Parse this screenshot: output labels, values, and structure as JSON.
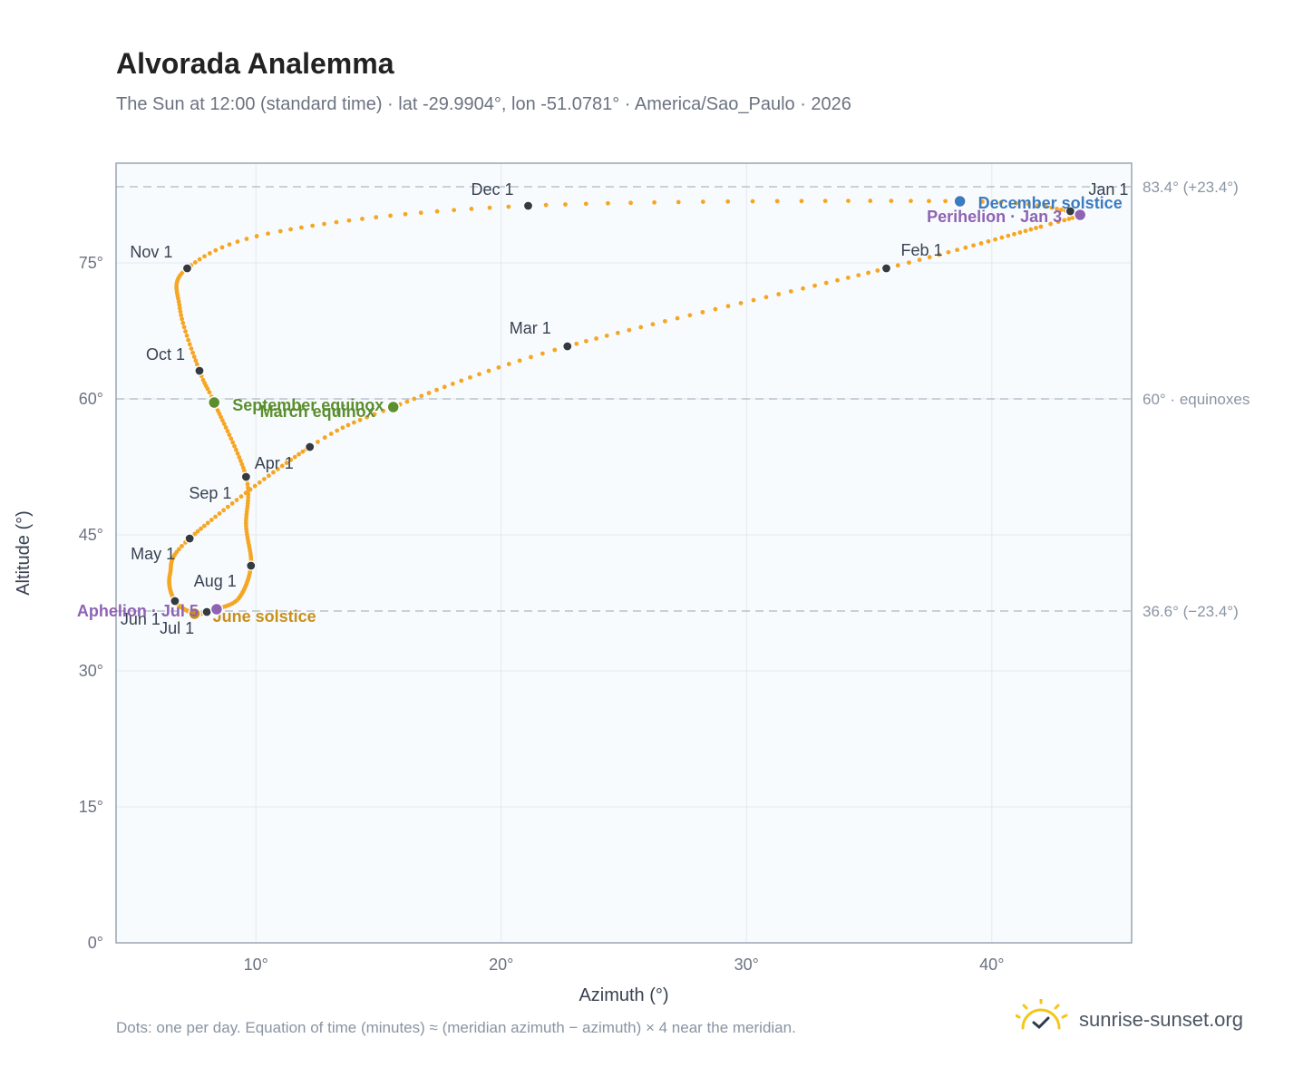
{
  "title": "Alvorada Analemma",
  "subtitle": "The Sun at 12:00 (standard time) · lat -29.9904°, lon -51.0781° · America/Sao_Paulo · 2026",
  "footnote": "Dots: one per day. Equation of time (minutes) ≈ (meridian azimuth − azimuth) × 4 near the meridian.",
  "brand": {
    "name": "sunrise-sunset.org",
    "icon": "sun-logo-icon"
  },
  "colors": {
    "path": "#f5a623",
    "month": "#343a40",
    "equinox": "#5b8f2e",
    "december": "#3b7bbf",
    "june": "#c8901a",
    "apsis": "#8e63b3",
    "refline": "#b8c2cc",
    "plotbg": "#f8fbfe",
    "frame": "#9aa5b1"
  },
  "chart_data": {
    "type": "scatter",
    "xlabel": "Azimuth (°)",
    "ylabel": "Altitude (°)",
    "xlim": [
      4.3,
      45.7
    ],
    "ylim": [
      0,
      86
    ],
    "x_ticks": [
      10,
      20,
      30,
      40
    ],
    "x_tick_labels": [
      "10°",
      "20°",
      "30°",
      "40°"
    ],
    "y_ticks": [
      0,
      15,
      30,
      45,
      60,
      75
    ],
    "y_tick_labels": [
      "0°",
      "15°",
      "30°",
      "45°",
      "60°",
      "75°"
    ],
    "grid": true,
    "path_keypoints": [
      {
        "day": 1,
        "az": 43.2,
        "alt": 80.7
      },
      {
        "day": 3,
        "az": 43.6,
        "alt": 80.3
      },
      {
        "day": 12,
        "az": 42.0,
        "alt": 79.0
      },
      {
        "day": 32,
        "az": 35.7,
        "alt": 74.4
      },
      {
        "day": 60,
        "az": 22.7,
        "alt": 65.8
      },
      {
        "day": 79,
        "az": 15.6,
        "alt": 59.1
      },
      {
        "day": 91,
        "az": 12.2,
        "alt": 54.7
      },
      {
        "day": 121,
        "az": 7.3,
        "alt": 44.6
      },
      {
        "day": 136,
        "az": 6.5,
        "alt": 40.7
      },
      {
        "day": 152,
        "az": 6.7,
        "alt": 37.7
      },
      {
        "day": 172,
        "az": 7.5,
        "alt": 36.3
      },
      {
        "day": 182,
        "az": 8.0,
        "alt": 36.5
      },
      {
        "day": 186,
        "az": 8.4,
        "alt": 36.8
      },
      {
        "day": 196,
        "az": 9.3,
        "alt": 38.0
      },
      {
        "day": 213,
        "az": 9.8,
        "alt": 41.6
      },
      {
        "day": 228,
        "az": 9.6,
        "alt": 46.0
      },
      {
        "day": 244,
        "az": 9.6,
        "alt": 51.4
      },
      {
        "day": 266,
        "az": 8.3,
        "alt": 59.6
      },
      {
        "day": 274,
        "az": 7.7,
        "alt": 63.1
      },
      {
        "day": 290,
        "az": 6.9,
        "alt": 70.0
      },
      {
        "day": 305,
        "az": 7.2,
        "alt": 74.4
      },
      {
        "day": 318,
        "az": 11.0,
        "alt": 78.5
      },
      {
        "day": 335,
        "az": 21.1,
        "alt": 81.3
      },
      {
        "day": 355,
        "az": 38.7,
        "alt": 81.8
      },
      {
        "day": 366,
        "az": 43.2,
        "alt": 80.7
      }
    ],
    "months": [
      {
        "label": "Jan 1",
        "az": 43.2,
        "alt": 80.7,
        "dx": 20,
        "dy": -18,
        "anchor": "start"
      },
      {
        "label": "Feb 1",
        "az": 35.7,
        "alt": 74.4,
        "dx": 16,
        "dy": -14,
        "anchor": "start"
      },
      {
        "label": "Mar 1",
        "az": 22.7,
        "alt": 65.8,
        "dx": -18,
        "dy": -14,
        "anchor": "end"
      },
      {
        "label": "Apr 1",
        "az": 12.2,
        "alt": 54.7,
        "dx": -18,
        "dy": 24,
        "anchor": "end"
      },
      {
        "label": "May 1",
        "az": 7.3,
        "alt": 44.6,
        "dx": -16,
        "dy": 23,
        "anchor": "end"
      },
      {
        "label": "Jun 1",
        "az": 6.7,
        "alt": 37.7,
        "dx": -16,
        "dy": 26,
        "anchor": "end"
      },
      {
        "label": "Jul 1",
        "az": 8.0,
        "alt": 36.5,
        "dx": -14,
        "dy": 24,
        "anchor": "end"
      },
      {
        "label": "Aug 1",
        "az": 9.8,
        "alt": 41.6,
        "dx": -16,
        "dy": 23,
        "anchor": "end"
      },
      {
        "label": "Sep 1",
        "az": 9.6,
        "alt": 51.4,
        "dx": -16,
        "dy": 24,
        "anchor": "end"
      },
      {
        "label": "Oct 1",
        "az": 7.7,
        "alt": 63.1,
        "dx": -16,
        "dy": -12,
        "anchor": "end"
      },
      {
        "label": "Nov 1",
        "az": 7.2,
        "alt": 74.4,
        "dx": -16,
        "dy": -12,
        "anchor": "end"
      },
      {
        "label": "Dec 1",
        "az": 21.1,
        "alt": 81.3,
        "dx": -16,
        "dy": -12,
        "anchor": "end"
      }
    ],
    "events": [
      {
        "label": "March equinox",
        "az": 15.6,
        "alt": 59.1,
        "color": "#5b8f2e",
        "dx": -20,
        "dy": 11,
        "anchor": "end"
      },
      {
        "label": "September equinox",
        "az": 8.3,
        "alt": 59.6,
        "color": "#5b8f2e",
        "dx": 20,
        "dy": 9,
        "anchor": "start"
      },
      {
        "label": "December solstice",
        "az": 38.7,
        "alt": 81.8,
        "color": "#3b7bbf",
        "dx": 20,
        "dy": 8,
        "anchor": "start"
      },
      {
        "label": "June solstice",
        "az": 7.5,
        "alt": 36.3,
        "color": "#c8901a",
        "dx": 20,
        "dy": 9,
        "anchor": "start"
      },
      {
        "label": "Perihelion · Jan 3",
        "az": 43.6,
        "alt": 80.3,
        "color": "#8e63b3",
        "dx": -20,
        "dy": 8,
        "anchor": "end"
      },
      {
        "label": "Aphelion · Jul 5",
        "az": 8.4,
        "alt": 36.8,
        "color": "#8e63b3",
        "dx": -20,
        "dy": 8,
        "anchor": "end"
      }
    ],
    "reference_lines": [
      {
        "alt": 83.4,
        "label": "83.4° (+23.4°)"
      },
      {
        "alt": 60.0,
        "label": "60° · equinoxes"
      },
      {
        "alt": 36.6,
        "label": "36.6° (−23.4°)"
      }
    ]
  }
}
